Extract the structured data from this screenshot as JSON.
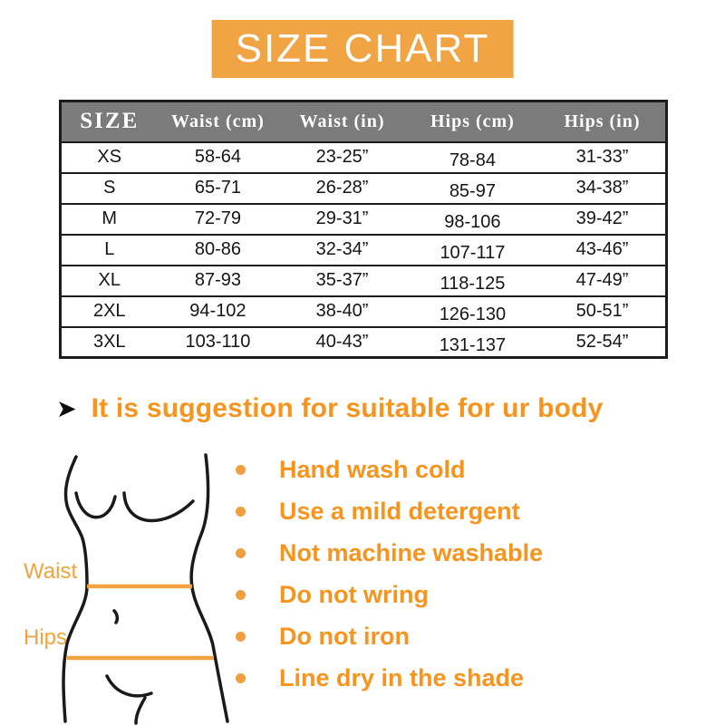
{
  "banner": {
    "text": "SIZE CHART"
  },
  "chart_data": {
    "type": "table",
    "title": "SIZE CHART",
    "columns": [
      "SIZE",
      "Waist (cm)",
      "Waist (in)",
      "Hips (cm)",
      "Hips (in)"
    ],
    "rows": [
      [
        "XS",
        "58-64",
        "23-25”",
        "78-84",
        "31-33”"
      ],
      [
        "S",
        "65-71",
        "26-28”",
        "85-97",
        "34-38”"
      ],
      [
        "M",
        "72-79",
        "29-31”",
        "98-106",
        "39-42”"
      ],
      [
        "L",
        "80-86",
        "32-34”",
        "107-117",
        "43-46”"
      ],
      [
        "XL",
        "87-93",
        "35-37”",
        "118-125",
        "47-49”"
      ],
      [
        "2XL",
        "94-102",
        "38-40”",
        "126-130",
        "50-51”"
      ],
      [
        "3XL",
        "103-110",
        "40-43”",
        "131-137",
        "52-54”"
      ]
    ]
  },
  "suggestion": {
    "arrow_icon": "➤",
    "text": "It is suggestion for suitable for ur body"
  },
  "figure": {
    "waist_label": "Waist",
    "hips_label": "Hips"
  },
  "care_list": {
    "items": [
      "Hand wash cold",
      "Use a mild detergent",
      "Not machine washable",
      "Do not wring",
      "Do not iron",
      "Line dry in the shade"
    ]
  },
  "colors": {
    "accent_orange": "#f7941d",
    "banner_orange": "#f0a444",
    "line_orange": "#f2a33f",
    "bullet_orange": "#ef9f3f",
    "header_gray": "#7b7b7b",
    "table_border": "#1c1c1c"
  }
}
